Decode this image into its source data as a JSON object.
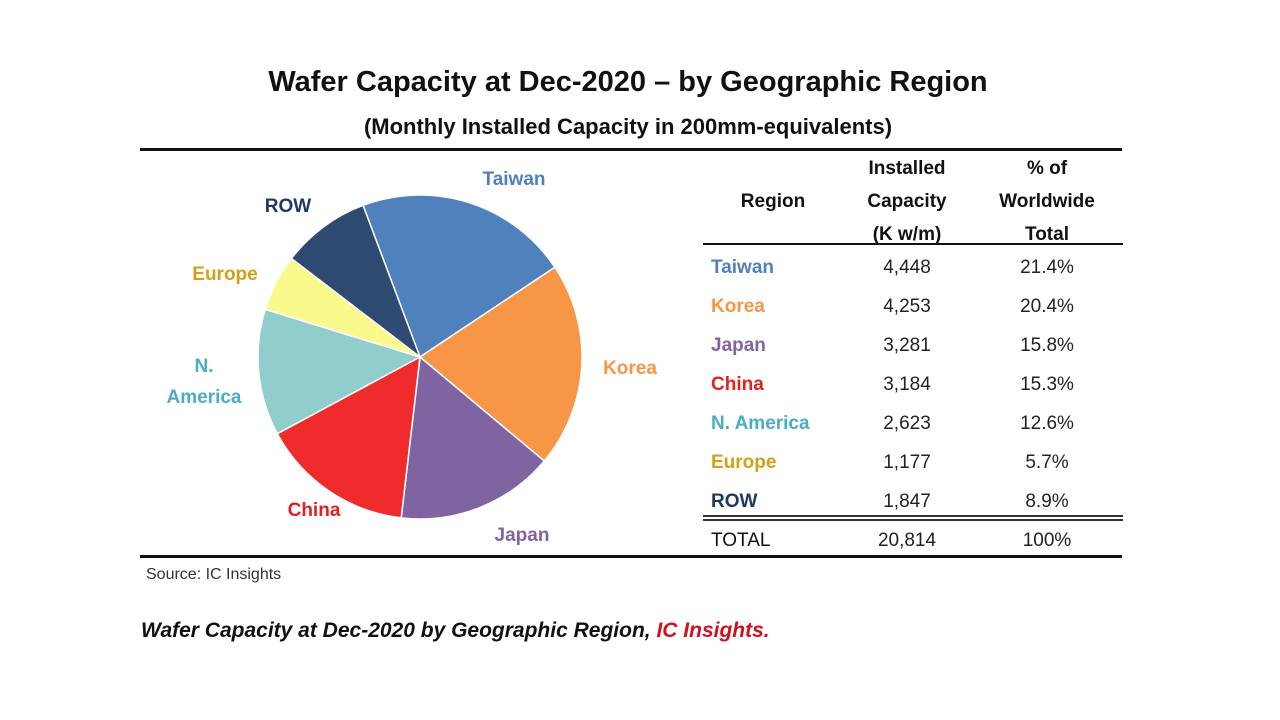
{
  "header": {
    "title": "Wafer Capacity at Dec-2020 – by Geographic Region",
    "subtitle": "(Monthly Installed Capacity in 200mm-equivalents)"
  },
  "table": {
    "col_region": "Region",
    "col_capacity": [
      "Installed",
      "Capacity",
      "(K w/m)"
    ],
    "col_share": [
      "% of",
      "Worldwide",
      "Total"
    ],
    "total": {
      "region": "TOTAL",
      "capacity": "20,814",
      "share": "100%"
    }
  },
  "source_note": "Source:  IC Insights",
  "caption": {
    "text": "Wafer Capacity at Dec-2020 by Geographic Region, ",
    "source": "IC Insights."
  },
  "chart_data": {
    "type": "pie",
    "title": "Wafer Capacity at Dec-2020 – by Geographic Region",
    "subtitle": "(Monthly Installed Capacity in 200mm-equivalents)",
    "units": "K w/m",
    "slices": [
      {
        "label": "Taiwan",
        "value": 4448,
        "capacity_text": "4,448",
        "percent": 21.4,
        "percent_text": "21.4%",
        "color": "#4f81bd",
        "label_color": "#4f81bd",
        "label_lines": [
          "Taiwan"
        ]
      },
      {
        "label": "Korea",
        "value": 4253,
        "capacity_text": "4,253",
        "percent": 20.4,
        "percent_text": "20.4%",
        "color": "#f79646",
        "label_color": "#f79646",
        "label_lines": [
          "Korea"
        ]
      },
      {
        "label": "Japan",
        "value": 3281,
        "capacity_text": "3,281",
        "percent": 15.8,
        "percent_text": "15.8%",
        "color": "#8064a2",
        "label_color": "#8064a2",
        "label_lines": [
          "Japan"
        ]
      },
      {
        "label": "China",
        "value": 3184,
        "capacity_text": "3,184",
        "percent": 15.3,
        "percent_text": "15.3%",
        "color": "#ef2b2b",
        "label_color": "#e0201f",
        "label_lines": [
          "China"
        ]
      },
      {
        "label": "N. America",
        "value": 2623,
        "capacity_text": "2,623",
        "percent": 12.6,
        "percent_text": "12.6%",
        "color": "#92cdcd",
        "label_color": "#4bacc6",
        "label_lines": [
          "N.",
          "America"
        ]
      },
      {
        "label": "Europe",
        "value": 1177,
        "capacity_text": "1,177",
        "percent": 5.7,
        "percent_text": "5.7%",
        "color": "#fafa8c",
        "label_color": "#d4a017",
        "label_lines": [
          "Europe"
        ]
      },
      {
        "label": "ROW",
        "value": 1847,
        "capacity_text": "1,847",
        "percent": 8.9,
        "percent_text": "8.9%",
        "color": "#2e4a72",
        "label_color": "#1f3864",
        "label_lines": [
          "ROW"
        ]
      }
    ]
  }
}
